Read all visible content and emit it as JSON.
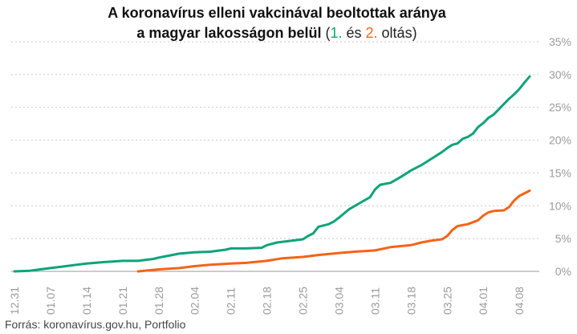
{
  "title": {
    "line1": "A koronavírus elleni vakcinával beoltottak aránya",
    "line2_prefix": "a magyar lakosságon belül",
    "open_paren": " (",
    "series1_label": "1.",
    "mid_word": " és ",
    "series2_label": "2.",
    "tail": " oltás)"
  },
  "source": "Forrás: koronavírus.gov.hu, Portfolio",
  "chart_data": {
    "type": "line",
    "title": "A koronavírus elleni vakcinával beoltottak aránya a magyar lakosságon belül (1. és 2. oltás)",
    "x_ticks": [
      "12.31",
      "01.07",
      "01.14",
      "01.21",
      "01.28",
      "02.04",
      "02.11",
      "02.18",
      "02.25",
      "03.04",
      "03.11",
      "03.18",
      "03.25",
      "04.01",
      "04.08"
    ],
    "x_range": [
      "2020-12-31",
      "2021-04-10"
    ],
    "ylim": [
      0,
      35
    ],
    "y_ticks": [
      0,
      5,
      10,
      15,
      20,
      25,
      30,
      35
    ],
    "y_tick_labels": [
      "0%",
      "5%",
      "10%",
      "15%",
      "20%",
      "25%",
      "30%",
      "35%"
    ],
    "y_axis_position": "right",
    "grid": "horizontal dashed",
    "legend": "in title",
    "series": [
      {
        "name": "1.",
        "color": "#0ea37a",
        "x": [
          "2020-12-31",
          "2021-01-03",
          "2021-01-05",
          "2021-01-07",
          "2021-01-10",
          "2021-01-12",
          "2021-01-14",
          "2021-01-17",
          "2021-01-19",
          "2021-01-21",
          "2021-01-24",
          "2021-01-26",
          "2021-01-27",
          "2021-01-28",
          "2021-01-30",
          "2021-02-01",
          "2021-02-04",
          "2021-02-07",
          "2021-02-10",
          "2021-02-11",
          "2021-02-14",
          "2021-02-17",
          "2021-02-18",
          "2021-02-20",
          "2021-02-23",
          "2021-02-25",
          "2021-02-26",
          "2021-02-27",
          "2021-02-28",
          "2021-03-01",
          "2021-03-02",
          "2021-03-03",
          "2021-03-04",
          "2021-03-06",
          "2021-03-08",
          "2021-03-10",
          "2021-03-11",
          "2021-03-12",
          "2021-03-14",
          "2021-03-16",
          "2021-03-18",
          "2021-03-20",
          "2021-03-22",
          "2021-03-24",
          "2021-03-25",
          "2021-03-26",
          "2021-03-27",
          "2021-03-28",
          "2021-03-29",
          "2021-03-30",
          "2021-03-31",
          "2021-04-01",
          "2021-04-02",
          "2021-04-03",
          "2021-04-04",
          "2021-04-05",
          "2021-04-06",
          "2021-04-07",
          "2021-04-08",
          "2021-04-09",
          "2021-04-10"
        ],
        "y": [
          0.0,
          0.1,
          0.3,
          0.5,
          0.8,
          1.0,
          1.2,
          1.4,
          1.5,
          1.6,
          1.6,
          1.8,
          1.9,
          2.1,
          2.4,
          2.7,
          2.9,
          3.0,
          3.3,
          3.5,
          3.5,
          3.6,
          4.0,
          4.4,
          4.7,
          4.9,
          5.4,
          5.8,
          6.8,
          7.0,
          7.2,
          7.6,
          8.2,
          9.5,
          10.4,
          11.3,
          12.5,
          13.2,
          13.5,
          14.4,
          15.4,
          16.2,
          17.2,
          18.2,
          18.8,
          19.3,
          19.5,
          20.2,
          20.5,
          21.0,
          22.0,
          22.6,
          23.4,
          23.9,
          24.7,
          25.5,
          26.3,
          27.0,
          27.8,
          28.8,
          29.7
        ]
      },
      {
        "name": "2.",
        "color": "#f26418",
        "x": [
          "2021-01-24",
          "2021-01-28",
          "2021-02-01",
          "2021-02-04",
          "2021-02-07",
          "2021-02-11",
          "2021-02-14",
          "2021-02-18",
          "2021-02-21",
          "2021-02-25",
          "2021-02-28",
          "2021-03-04",
          "2021-03-07",
          "2021-03-11",
          "2021-03-14",
          "2021-03-18",
          "2021-03-20",
          "2021-03-22",
          "2021-03-24",
          "2021-03-25",
          "2021-03-26",
          "2021-03-27",
          "2021-03-29",
          "2021-03-31",
          "2021-04-01",
          "2021-04-02",
          "2021-04-03",
          "2021-04-05",
          "2021-04-06",
          "2021-04-07",
          "2021-04-08",
          "2021-04-10"
        ],
        "y": [
          0.0,
          0.3,
          0.5,
          0.8,
          1.0,
          1.2,
          1.3,
          1.6,
          2.0,
          2.2,
          2.5,
          2.8,
          3.0,
          3.2,
          3.7,
          4.0,
          4.4,
          4.7,
          4.9,
          5.4,
          6.3,
          6.9,
          7.2,
          7.8,
          8.5,
          9.0,
          9.2,
          9.3,
          9.8,
          10.8,
          11.5,
          12.3
        ]
      }
    ]
  }
}
